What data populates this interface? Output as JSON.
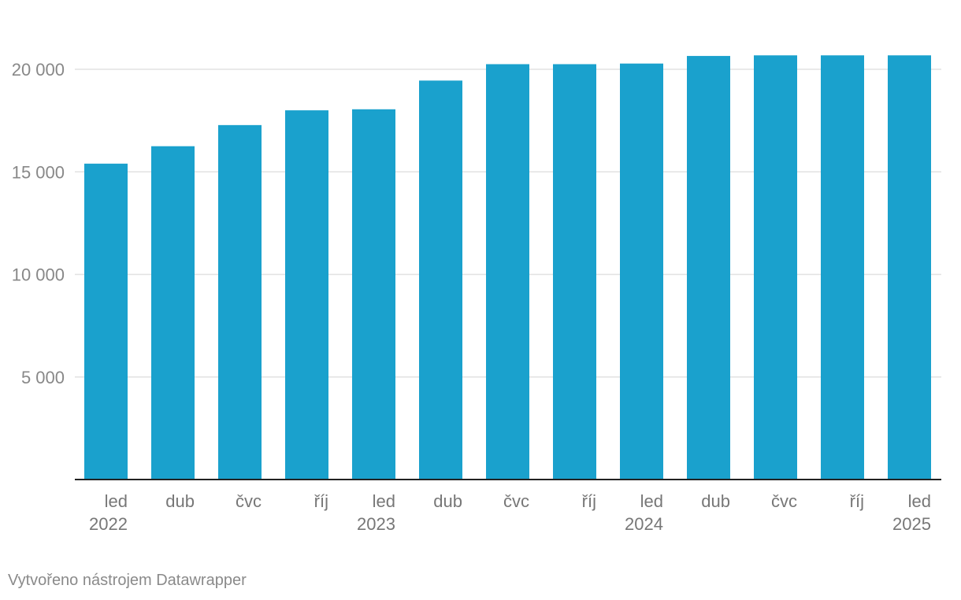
{
  "chart_data": {
    "type": "bar",
    "categories": [
      [
        "led",
        "2022"
      ],
      [
        "dub",
        ""
      ],
      [
        "čvc",
        ""
      ],
      [
        "říj",
        ""
      ],
      [
        "led",
        "2023"
      ],
      [
        "dub",
        ""
      ],
      [
        "čvc",
        ""
      ],
      [
        "říj",
        ""
      ],
      [
        "led",
        "2024"
      ],
      [
        "dub",
        ""
      ],
      [
        "čvc",
        ""
      ],
      [
        "říj",
        ""
      ],
      [
        "led",
        "2025"
      ]
    ],
    "values": [
      15400,
      16250,
      17280,
      18000,
      18050,
      19450,
      20250,
      20250,
      20280,
      20650,
      20680,
      20680,
      20680
    ],
    "ylim": [
      0,
      22000
    ],
    "yticks": [
      5000,
      10000,
      15000,
      20000
    ],
    "ytick_labels": [
      "5 000",
      "10 000",
      "15 000",
      "20 000"
    ],
    "grid": true,
    "bar_color": "#1aa1cd",
    "title": "",
    "xlabel": "",
    "ylabel": ""
  },
  "footer": {
    "credit": "Vytvořeno nástrojem Datawrapper"
  }
}
